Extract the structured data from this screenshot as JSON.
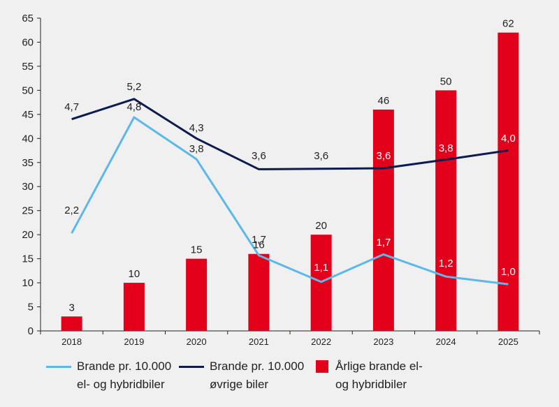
{
  "colors": {
    "bar": "#e3001b",
    "light_line": "#5bb8e8",
    "dark_line": "#0d1b4f",
    "axis": "#222222",
    "background": "#f0f0f0"
  },
  "chart_data": {
    "type": "bar",
    "categories": [
      "2018",
      "2019",
      "2020",
      "2021",
      "2022",
      "2023",
      "2024",
      "2025"
    ],
    "ylim": [
      0,
      65
    ],
    "yticks": [
      "0",
      "5",
      "10",
      "15",
      "20",
      "25",
      "30",
      "35",
      "40",
      "45",
      "50",
      "55",
      "60",
      "65"
    ],
    "grid": false,
    "series": [
      {
        "name": "Årlige brande el- og hybridbiler",
        "kind": "bar",
        "values": [
          3,
          10,
          15,
          16,
          20,
          46,
          50,
          62
        ],
        "labels": [
          "3",
          "10",
          "15",
          "16",
          "20",
          "46",
          "50",
          "62"
        ]
      },
      {
        "name": "Brande pr. 10.000 el- og hybridbiler",
        "kind": "line",
        "values": [
          2.2,
          4.8,
          3.8,
          1.7,
          1.1,
          1.7,
          1.2,
          1.0
        ],
        "labels": [
          "2,2",
          "4,8",
          "3,8",
          "1,7",
          "1,1",
          "1,7",
          "1,2",
          "1,0"
        ]
      },
      {
        "name": "Brande pr. 10.000 øvrige biler",
        "kind": "line",
        "values": [
          4.7,
          5.2,
          4.3,
          3.6,
          3.6,
          3.6,
          3.8,
          4.0
        ],
        "labels": [
          "4,7",
          "5,2",
          "4,3",
          "3,6",
          "3,6",
          "3,6",
          "3,8",
          "4,0"
        ]
      }
    ],
    "legend": {
      "placement": "bottom",
      "items": [
        {
          "line1": "Brande pr. 10.000",
          "line2": "el- og hybridbiler"
        },
        {
          "line1": "Brande pr. 10.000",
          "line2": "øvrige biler"
        },
        {
          "line1": "Årlige brande el-",
          "line2": "og hybridbiler"
        }
      ]
    }
  }
}
